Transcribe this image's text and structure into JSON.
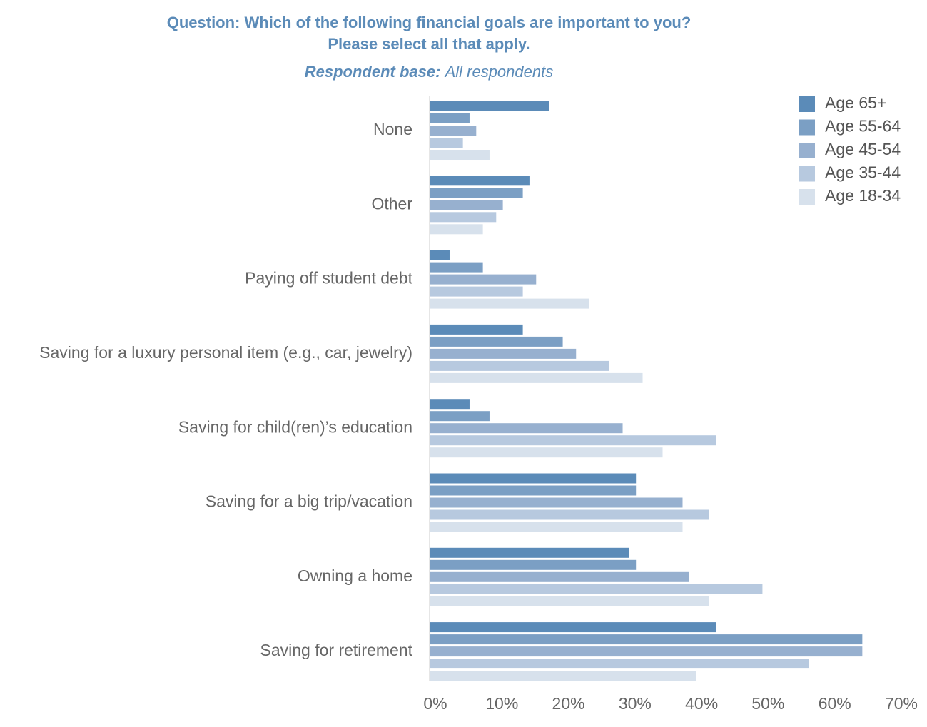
{
  "chart_data": {
    "type": "hbar",
    "title": [
      "Question: Which of the following financial goals are important to you?",
      "Please select all that apply."
    ],
    "subtitle": {
      "label": "Respondent base:",
      "value": "All respondents"
    },
    "categories": [
      "None",
      "Other",
      "Paying off student debt",
      "Saving for a luxury personal item (e.g., car, jewelry)",
      "Saving for child(ren)’s education",
      "Saving for a big trip/vacation",
      "Owning a home",
      "Saving for retirement"
    ],
    "series": [
      {
        "name": "Age 65+",
        "color": "#5b8bb8",
        "values": [
          18,
          15,
          3,
          14,
          6,
          31,
          30,
          43
        ]
      },
      {
        "name": "Age 55-64",
        "color": "#7b9fc4",
        "values": [
          6,
          14,
          8,
          20,
          9,
          31,
          31,
          65
        ]
      },
      {
        "name": "Age 45-54",
        "color": "#97b0cf",
        "values": [
          7,
          11,
          16,
          22,
          29,
          38,
          39,
          65
        ]
      },
      {
        "name": "Age 35-44",
        "color": "#b7c9df",
        "values": [
          5,
          10,
          14,
          27,
          43,
          42,
          50,
          57
        ]
      },
      {
        "name": "Age 18-34",
        "color": "#d7e1ec",
        "values": [
          9,
          8,
          24,
          32,
          35,
          38,
          42,
          40
        ]
      }
    ],
    "xlim": [
      0,
      70
    ],
    "xticks": [
      {
        "value": 0,
        "label": "0%"
      },
      {
        "value": 10,
        "label": "10%"
      },
      {
        "value": 20,
        "label": "20%"
      },
      {
        "value": 30,
        "label": "30%"
      },
      {
        "value": 40,
        "label": "40%"
      },
      {
        "value": 50,
        "label": "50%"
      },
      {
        "value": 60,
        "label": "60%"
      },
      {
        "value": 70,
        "label": "70%"
      }
    ],
    "grid": false,
    "legend": "top-right"
  }
}
